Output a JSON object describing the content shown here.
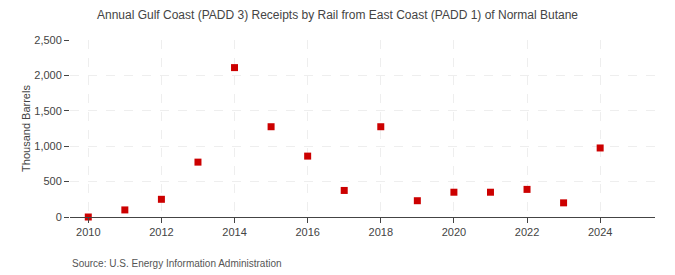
{
  "chart_data": {
    "type": "scatter",
    "title": "Annual Gulf Coast (PADD 3) Receipts by Rail from East Coast (PADD 1) of Normal Butane",
    "ylabel": "Thousand Barrels",
    "source": "Source: U.S. Energy Information Administration",
    "x": [
      2010,
      2011,
      2012,
      2013,
      2014,
      2015,
      2016,
      2017,
      2018,
      2019,
      2020,
      2021,
      2022,
      2023,
      2024
    ],
    "values": [
      0,
      100,
      250,
      775,
      2110,
      1275,
      860,
      375,
      1275,
      230,
      350,
      350,
      390,
      200,
      975
    ],
    "color": "#cc0000",
    "marker": "square",
    "xlim": [
      2009.5,
      2025.5
    ],
    "xticks": [
      2010,
      2012,
      2014,
      2016,
      2018,
      2020,
      2022,
      2024
    ],
    "ylim": [
      0,
      2500
    ],
    "yticks": [
      0,
      500,
      {
        "value": 1000,
        "label": "1,000"
      },
      {
        "value": 1500,
        "label": "1,500"
      },
      {
        "value": 2000,
        "label": "2,000"
      },
      {
        "value": 2500,
        "label": "2,500"
      }
    ],
    "grid": true
  }
}
